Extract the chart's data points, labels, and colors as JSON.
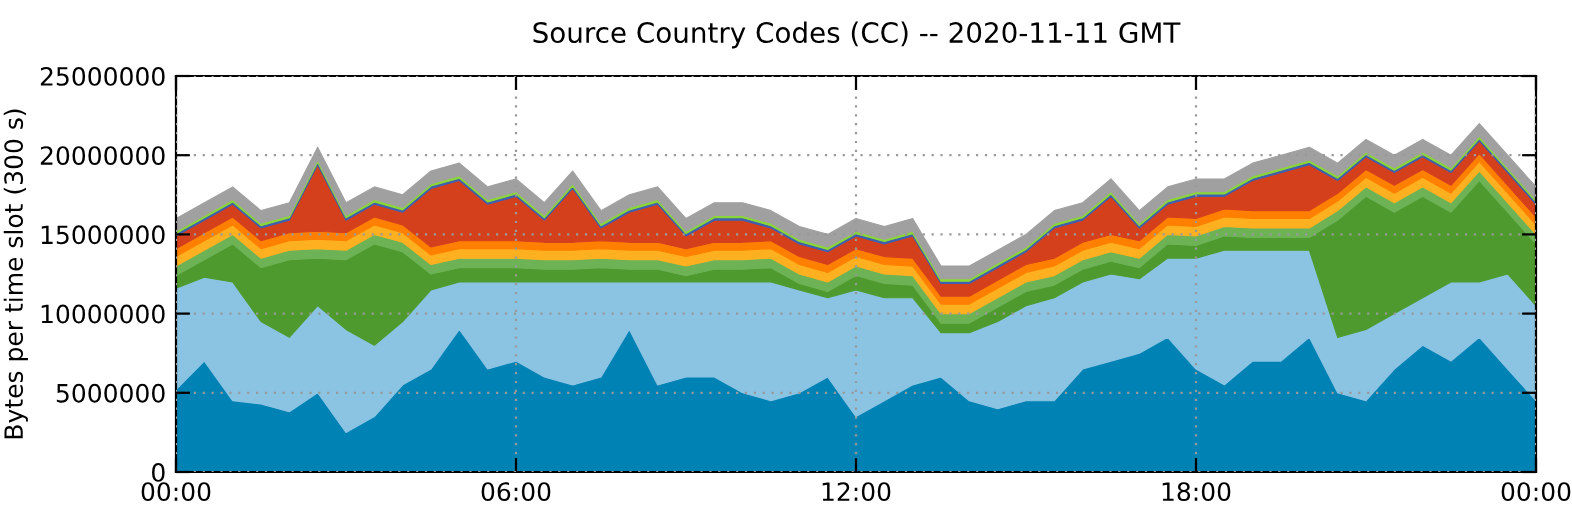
{
  "chart_data": {
    "type": "area",
    "stacked": true,
    "title": "Source Country Codes (CC) -- 2020-11-11 GMT",
    "ylabel": "Bytes per time slot (300 s)",
    "x": [
      0,
      0.5,
      1,
      1.5,
      2,
      2.5,
      3,
      3.5,
      4,
      4.5,
      5,
      5.5,
      6,
      6.5,
      7,
      7.5,
      8,
      8.5,
      9,
      9.5,
      10,
      10.5,
      11,
      11.5,
      12,
      12.5,
      13,
      13.5,
      14,
      14.5,
      15,
      15.5,
      16,
      16.5,
      17,
      17.5,
      18,
      18.5,
      19,
      19.5,
      20,
      20.5,
      21,
      21.5,
      22,
      22.5,
      23,
      23.5,
      24
    ],
    "xlim": [
      0,
      24
    ],
    "xticks": [
      {
        "value": 0,
        "label": "00:00"
      },
      {
        "value": 6,
        "label": "06:00"
      },
      {
        "value": 12,
        "label": "12:00"
      },
      {
        "value": 18,
        "label": "18:00"
      },
      {
        "value": 24,
        "label": "00:00"
      }
    ],
    "ylim": [
      0,
      25000000
    ],
    "yticks": [
      0,
      5000000,
      10000000,
      15000000,
      20000000,
      25000000
    ],
    "grid": true,
    "series": [
      {
        "color": "#0082b4",
        "values": [
          5200000,
          7000000,
          4500000,
          4300000,
          3800000,
          5000000,
          2500000,
          3500000,
          5500000,
          6500000,
          9000000,
          6500000,
          7000000,
          6000000,
          5500000,
          6000000,
          9000000,
          5500000,
          6000000,
          6000000,
          5000000,
          4500000,
          5000000,
          6000000,
          3500000,
          4500000,
          5500000,
          6000000,
          4500000,
          4000000,
          4500000,
          4500000,
          6500000,
          7000000,
          7500000,
          8500000,
          6500000,
          5500000,
          7000000,
          7000000,
          8500000,
          5000000,
          4500000,
          6500000,
          8000000,
          7000000,
          8500000,
          6500000,
          4500000
        ]
      },
      {
        "color": "#8bc4e3",
        "values": [
          6400000,
          5300000,
          7500000,
          5200000,
          4700000,
          5500000,
          6500000,
          4500000,
          4000000,
          5000000,
          3000000,
          5500000,
          5000000,
          6000000,
          6500000,
          6000000,
          3000000,
          6500000,
          6000000,
          6000000,
          7000000,
          7500000,
          6500000,
          5000000,
          8000000,
          6500000,
          5500000,
          2800000,
          4300000,
          5500000,
          6000000,
          6500000,
          5500000,
          5500000,
          4700000,
          5000000,
          7000000,
          8500000,
          7000000,
          7000000,
          5500000,
          3500000,
          4500000,
          3500000,
          3000000,
          5000000,
          3500000,
          6000000,
          6000000
        ]
      },
      {
        "color": "#4e9a2e",
        "values": [
          800000,
          1100000,
          2400000,
          3400000,
          4900000,
          3000000,
          4400000,
          6400000,
          4400000,
          1000000,
          900000,
          900000,
          900000,
          800000,
          800000,
          900000,
          800000,
          800000,
          400000,
          800000,
          800000,
          900000,
          400000,
          400000,
          900000,
          900000,
          800000,
          600000,
          600000,
          900000,
          900000,
          800000,
          800000,
          800000,
          700000,
          900000,
          800000,
          900000,
          800000,
          800000,
          800000,
          7400000,
          8400000,
          6400000,
          6400000,
          4400000,
          6400000,
          3900000,
          3900000
        ]
      },
      {
        "color": "#6db356",
        "values": [
          600000,
          600000,
          600000,
          600000,
          600000,
          600000,
          600000,
          600000,
          600000,
          600000,
          600000,
          600000,
          600000,
          600000,
          600000,
          600000,
          600000,
          600000,
          600000,
          600000,
          600000,
          600000,
          600000,
          600000,
          600000,
          600000,
          600000,
          600000,
          600000,
          600000,
          600000,
          600000,
          600000,
          600000,
          600000,
          600000,
          600000,
          600000,
          600000,
          600000,
          600000,
          600000,
          600000,
          600000,
          600000,
          600000,
          600000,
          600000,
          600000
        ]
      },
      {
        "color": "#ffb020",
        "values": [
          600000,
          600000,
          600000,
          600000,
          600000,
          600000,
          600000,
          600000,
          600000,
          600000,
          600000,
          600000,
          600000,
          600000,
          600000,
          600000,
          600000,
          600000,
          600000,
          600000,
          600000,
          600000,
          600000,
          600000,
          600000,
          600000,
          600000,
          600000,
          600000,
          600000,
          600000,
          600000,
          600000,
          600000,
          600000,
          600000,
          600000,
          600000,
          600000,
          600000,
          600000,
          600000,
          600000,
          600000,
          600000,
          600000,
          600000,
          600000,
          600000
        ]
      },
      {
        "color": "#ff8000",
        "values": [
          500000,
          500000,
          500000,
          500000,
          500000,
          500000,
          500000,
          500000,
          500000,
          500000,
          500000,
          500000,
          500000,
          500000,
          500000,
          500000,
          500000,
          500000,
          500000,
          500000,
          500000,
          500000,
          500000,
          500000,
          500000,
          500000,
          500000,
          500000,
          500000,
          500000,
          500000,
          500000,
          500000,
          500000,
          500000,
          500000,
          500000,
          500000,
          500000,
          500000,
          500000,
          500000,
          500000,
          500000,
          500000,
          500000,
          500000,
          500000,
          500000
        ]
      },
      {
        "color": "#d5401c",
        "values": [
          800000,
          800000,
          800000,
          800000,
          800000,
          4200000,
          800000,
          800000,
          800000,
          3700000,
          3800000,
          2300000,
          2800000,
          1400000,
          3400000,
          800000,
          1900000,
          2400000,
          800000,
          1400000,
          1400000,
          800000,
          800000,
          800000,
          800000,
          800000,
          1400000,
          800000,
          800000,
          800000,
          800000,
          1900000,
          1400000,
          2400000,
          800000,
          800000,
          1400000,
          800000,
          1900000,
          2400000,
          2900000,
          800000,
          800000,
          800000,
          800000,
          800000,
          800000,
          800000,
          800000
        ]
      },
      {
        "color": "#3f5fb0",
        "values": [
          150000,
          150000,
          150000,
          150000,
          150000,
          150000,
          150000,
          150000,
          150000,
          150000,
          150000,
          150000,
          150000,
          150000,
          150000,
          150000,
          150000,
          150000,
          150000,
          150000,
          150000,
          150000,
          150000,
          150000,
          150000,
          150000,
          150000,
          150000,
          150000,
          150000,
          150000,
          150000,
          150000,
          150000,
          150000,
          150000,
          150000,
          150000,
          150000,
          150000,
          150000,
          150000,
          150000,
          150000,
          150000,
          150000,
          150000,
          150000,
          150000
        ]
      },
      {
        "color": "#8ad834",
        "values": [
          150000,
          150000,
          150000,
          150000,
          150000,
          150000,
          150000,
          150000,
          150000,
          150000,
          150000,
          150000,
          150000,
          150000,
          150000,
          150000,
          150000,
          150000,
          150000,
          150000,
          150000,
          150000,
          150000,
          150000,
          150000,
          150000,
          150000,
          150000,
          150000,
          150000,
          150000,
          150000,
          150000,
          150000,
          150000,
          150000,
          150000,
          150000,
          150000,
          150000,
          150000,
          150000,
          150000,
          150000,
          150000,
          150000,
          150000,
          150000,
          150000
        ]
      },
      {
        "color": "#a0a0a0",
        "values": [
          800000,
          800000,
          800000,
          800000,
          800000,
          800000,
          800000,
          800000,
          800000,
          800000,
          800000,
          800000,
          800000,
          800000,
          800000,
          800000,
          800000,
          800000,
          800000,
          800000,
          800000,
          800000,
          800000,
          800000,
          800000,
          800000,
          800000,
          800000,
          800000,
          800000,
          800000,
          800000,
          800000,
          800000,
          800000,
          800000,
          800000,
          800000,
          800000,
          800000,
          800000,
          800000,
          800000,
          800000,
          800000,
          800000,
          800000,
          800000,
          800000
        ]
      }
    ]
  }
}
